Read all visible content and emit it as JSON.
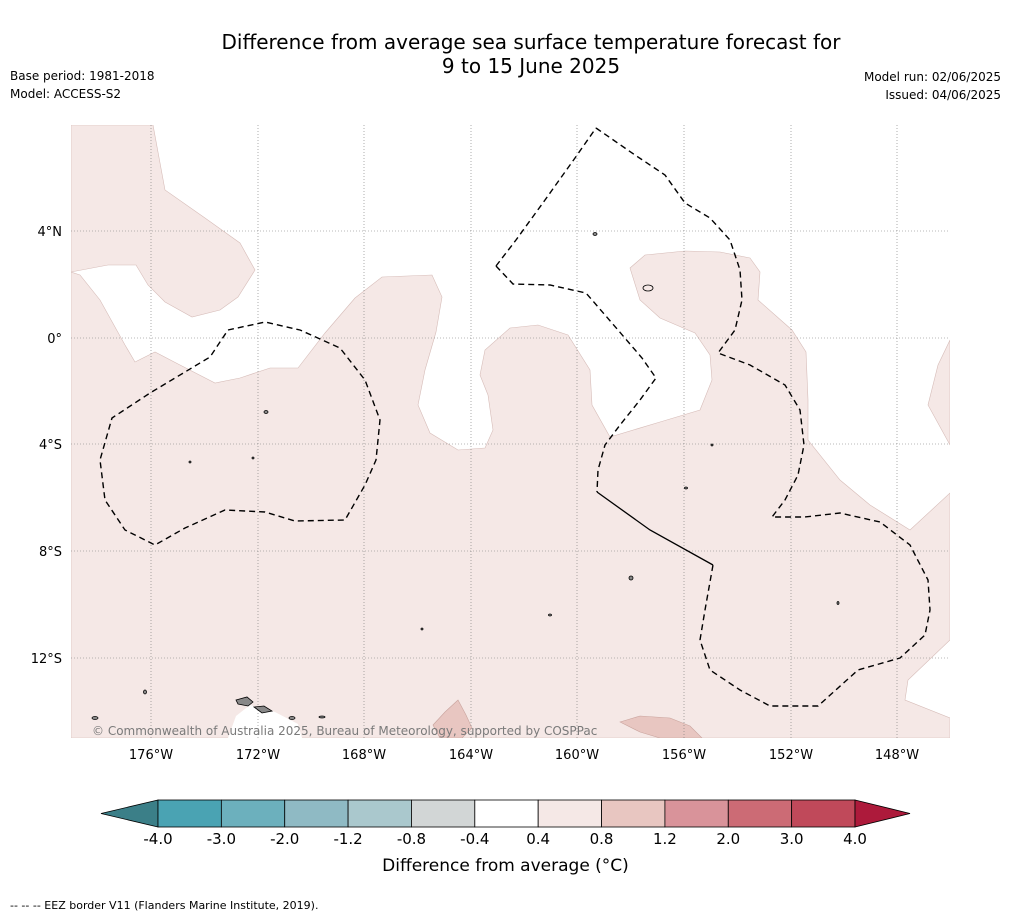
{
  "title_line1": "Difference from average sea surface temperature forecast for",
  "title_line2": "9 to 15 June 2025",
  "base_period": "Base period: 1981-2018",
  "model": "Model: ACCESS-S2",
  "model_run": "Model run: 02/06/2025",
  "issued": "Issued: 04/06/2025",
  "copyright": "© Commonwealth of Australia 2025, Bureau of Meteorology, supported by COSPPac",
  "lat_labels": [
    "4°N",
    "0°",
    "4°S",
    "8°S",
    "12°S"
  ],
  "lon_labels": [
    "176°W",
    "172°W",
    "168°W",
    "164°W",
    "160°W",
    "156°W",
    "152°W",
    "148°W"
  ],
  "colorbar": {
    "title": "Difference from average (°C)",
    "ticks": [
      "-4.0",
      "-3.0",
      "-2.0",
      "-1.2",
      "-0.8",
      "-0.4",
      "0.4",
      "0.8",
      "1.2",
      "2.0",
      "3.0",
      "4.0"
    ],
    "colors": [
      "#4aa3b3",
      "#6cb0bd",
      "#8fbac4",
      "#aac8cd",
      "#d2d6d6",
      "#ffffff",
      "#f5e8e6",
      "#e8c6c1",
      "#d9939a",
      "#cc6b75",
      "#c0495a"
    ],
    "under_color": "#3b7f88",
    "over_color": "#ad1a3b"
  },
  "map_colors": {
    "band_04_08": "#f5e8e6",
    "band_08_12": "#e8c6c1",
    "neutral": "#ffffff"
  },
  "footer": "--  --  -- EEZ border V11 (Flanders Marine Institute, 2019)."
}
